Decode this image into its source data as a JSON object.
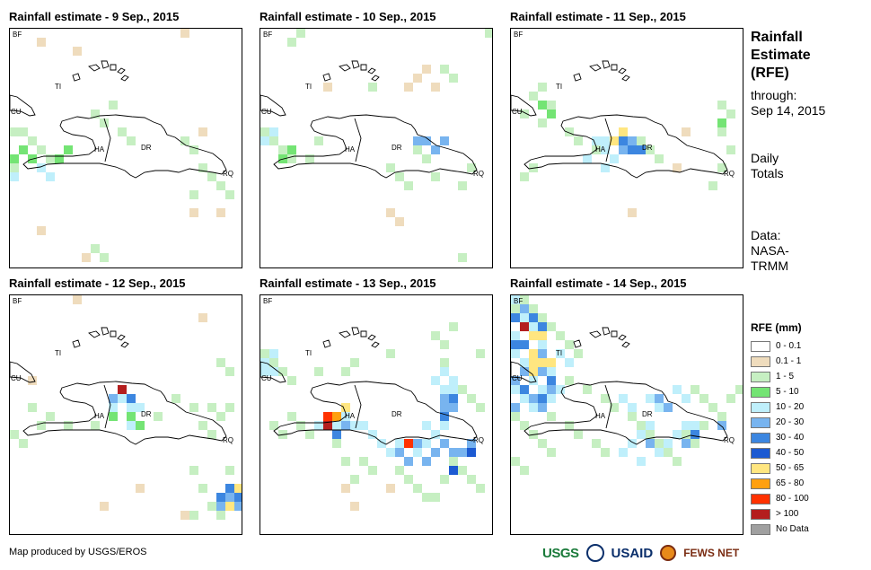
{
  "panels": [
    {
      "title": "Rainfall estimate - 9 Sep., 2015"
    },
    {
      "title": "Rainfall estimate - 10 Sep., 2015"
    },
    {
      "title": "Rainfall estimate - 11 Sep., 2015"
    },
    {
      "title": "Rainfall estimate - 12 Sep., 2015"
    },
    {
      "title": "Rainfall estimate - 13 Sep., 2015"
    },
    {
      "title": "Rainfall estimate - 14 Sep., 2015"
    }
  ],
  "map_labels": {
    "bf": "BF",
    "ti": "TI",
    "cu": "CU",
    "ha": "HA",
    "dr": "DR",
    "rq": "RQ"
  },
  "sidebar": {
    "title_line1": "Rainfall",
    "title_line2": "Estimate",
    "title_line3": "(RFE)",
    "through_line1": "through:",
    "through_line2": "Sep 14, 2015",
    "totals_line1": "Daily",
    "totals_line2": "Totals",
    "data_line1": "Data:",
    "data_line2": "NASA-",
    "data_line3": "TRMM"
  },
  "legend": {
    "title": "RFE (mm)",
    "items": [
      {
        "label": "0 - 0.1",
        "color": "#ffffff"
      },
      {
        "label": "0.1 - 1",
        "color": "#efdcbd"
      },
      {
        "label": "1 - 5",
        "color": "#c6efc2"
      },
      {
        "label": "5 - 10",
        "color": "#74e474"
      },
      {
        "label": "10 - 20",
        "color": "#bfeffb"
      },
      {
        "label": "20 - 30",
        "color": "#78b4ef"
      },
      {
        "label": "30 - 40",
        "color": "#3c86e0"
      },
      {
        "label": "40 - 50",
        "color": "#1c5ad2"
      },
      {
        "label": "50 - 65",
        "color": "#ffe680"
      },
      {
        "label": "65 - 80",
        "color": "#ffa010"
      },
      {
        "label": "80 - 100",
        "color": "#ff3200"
      },
      {
        "label": "> 100",
        "color": "#b41e1e"
      },
      {
        "label": "No Data",
        "color": "#a0a0a0"
      }
    ]
  },
  "footer": {
    "credit": "Map produced by USGS/EROS",
    "logos": {
      "usgs": "USGS",
      "usaid": "USAID",
      "fews": "FEWS NET"
    }
  }
}
